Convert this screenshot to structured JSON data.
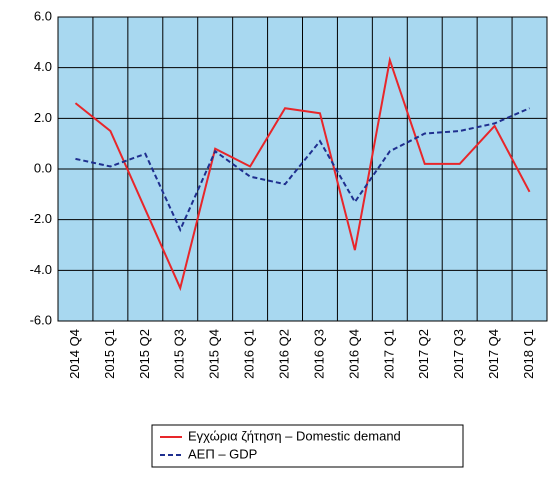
{
  "chart_data": {
    "type": "line",
    "categories": [
      "2014 Q4",
      "2015 Q1",
      "2015 Q2",
      "2015 Q3",
      "2015 Q4",
      "2016 Q1",
      "2016 Q2",
      "2016 Q3",
      "2016 Q4",
      "2017 Q1",
      "2017 Q2",
      "2017 Q3",
      "2017 Q4",
      "2018 Q1"
    ],
    "series": [
      {
        "name": "Εγχώρια ζήτηση – Domestic demand",
        "color": "#e8262a",
        "dash": false,
        "values": [
          2.6,
          1.5,
          -1.6,
          -4.7,
          0.8,
          0.1,
          2.4,
          2.2,
          -3.2,
          4.3,
          0.2,
          0.2,
          1.7,
          -0.9
        ]
      },
      {
        "name": "ΑΕΠ – GDP",
        "color": "#1f2f8f",
        "dash": true,
        "values": [
          0.4,
          0.1,
          0.6,
          -2.4,
          0.7,
          -0.3,
          -0.6,
          1.1,
          -1.3,
          0.7,
          1.4,
          1.5,
          1.8,
          2.4
        ]
      }
    ],
    "ylim": [
      -6,
      6
    ],
    "yticks": [
      {
        "value": 6,
        "label": "6.0"
      },
      {
        "value": 4,
        "label": "4.0"
      },
      {
        "value": 2,
        "label": "2.0"
      },
      {
        "value": 0,
        "label": "0.0"
      },
      {
        "value": -2,
        "label": "-2.0"
      },
      {
        "value": -4,
        "label": "-4.0"
      },
      {
        "value": -6,
        "label": "-6.0"
      }
    ],
    "grid": true,
    "background": "#a8d8f0",
    "legend": "bottom"
  }
}
